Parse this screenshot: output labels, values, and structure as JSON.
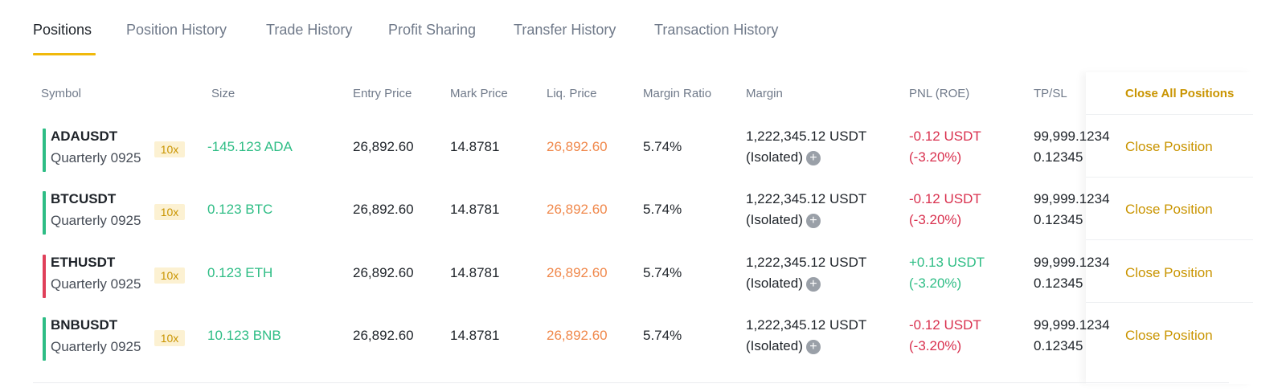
{
  "tabs": [
    {
      "label": "Positions",
      "active": true
    },
    {
      "label": "Position History"
    },
    {
      "label": "Trade History"
    },
    {
      "label": "Profit Sharing"
    },
    {
      "label": "Transfer History"
    },
    {
      "label": "Transaction History"
    }
  ],
  "table": {
    "headers": {
      "symbol": "Symbol",
      "size": "Size",
      "entry_price": "Entry Price",
      "mark_price": "Mark Price",
      "liq_price": "Liq. Price",
      "margin_ratio": "Margin Ratio",
      "margin": "Margin",
      "pnl": "PNL (ROE)",
      "tpsl": "TP/SL",
      "close_all": "Close All Positions"
    },
    "rows": [
      {
        "symbol": "ADAUSDT",
        "contract": "Quarterly 0925",
        "leverage": "10x",
        "side_color": "#2ebd85",
        "size": "-145.123 ADA",
        "entry_price": "26,892.60",
        "mark_price": "14.8781",
        "liq_price": "26,892.60",
        "margin_ratio": "5.74%",
        "margin": "1,222,345.12 USDT",
        "margin_mode": "(Isolated)",
        "pnl": "-0.12 USDT",
        "roe": "(-3.20%)",
        "pnl_positive": false,
        "tp": "99,999.1234",
        "sl": "0.12345",
        "close_label": "Close Position"
      },
      {
        "symbol": "BTCUSDT",
        "contract": "Quarterly 0925",
        "leverage": "10x",
        "side_color": "#2ebd85",
        "size": "0.123 BTC",
        "entry_price": "26,892.60",
        "mark_price": "14.8781",
        "liq_price": "26,892.60",
        "margin_ratio": "5.74%",
        "margin": "1,222,345.12 USDT",
        "margin_mode": "(Isolated)",
        "pnl": "-0.12 USDT",
        "roe": "(-3.20%)",
        "pnl_positive": false,
        "tp": "99,999.1234",
        "sl": "0.12345",
        "close_label": "Close Position"
      },
      {
        "symbol": "ETHUSDT",
        "contract": "Quarterly 0925",
        "leverage": "10x",
        "side_color": "#e0405a",
        "size": "0.123 ETH",
        "entry_price": "26,892.60",
        "mark_price": "14.8781",
        "liq_price": "26,892.60",
        "margin_ratio": "5.74%",
        "margin": "1,222,345.12 USDT",
        "margin_mode": "(Isolated)",
        "pnl": "+0.13 USDT",
        "roe": "(-3.20%)",
        "pnl_positive": true,
        "tp": "99,999.1234",
        "sl": "0.12345",
        "close_label": "Close Position"
      },
      {
        "symbol": "BNBUSDT",
        "contract": "Quarterly 0925",
        "leverage": "10x",
        "side_color": "#2ebd85",
        "size": "10.123 BNB",
        "entry_price": "26,892.60",
        "mark_price": "14.8781",
        "liq_price": "26,892.60",
        "margin_ratio": "5.74%",
        "margin": "1,222,345.12 USDT",
        "margin_mode": "(Isolated)",
        "pnl": "-0.12 USDT",
        "roe": "(-3.20%)",
        "pnl_positive": false,
        "tp": "99,999.1234",
        "sl": "0.12345",
        "close_label": "Close Position"
      }
    ]
  },
  "icons": {
    "add_margin": "plus-circle-icon"
  },
  "colors": {
    "accent": "#f0b90b",
    "accent_text": "#c99400",
    "buy": "#2ebd85",
    "sell": "#d9304e",
    "liq": "#f0884b"
  }
}
